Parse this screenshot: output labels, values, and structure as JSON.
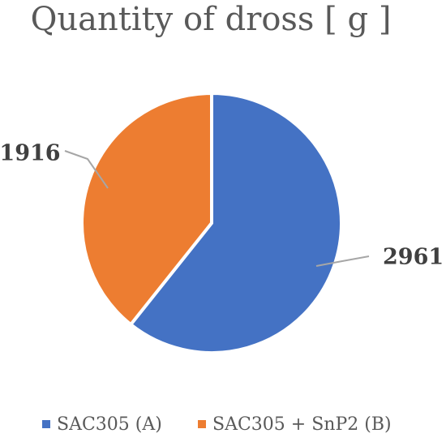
{
  "chart_data": {
    "type": "pie",
    "title": "Quantity of dross [ g ]",
    "slices": [
      {
        "label": "SAC305 (A)",
        "value": 2961,
        "color": "#4472c4"
      },
      {
        "label": "SAC305 + SnP2 (B)",
        "value": 1916,
        "color": "#ed7d31"
      }
    ],
    "start_angle_deg": 0,
    "direction": "clockwise",
    "data_labels": "outside-with-leader-lines",
    "legend": "bottom"
  }
}
